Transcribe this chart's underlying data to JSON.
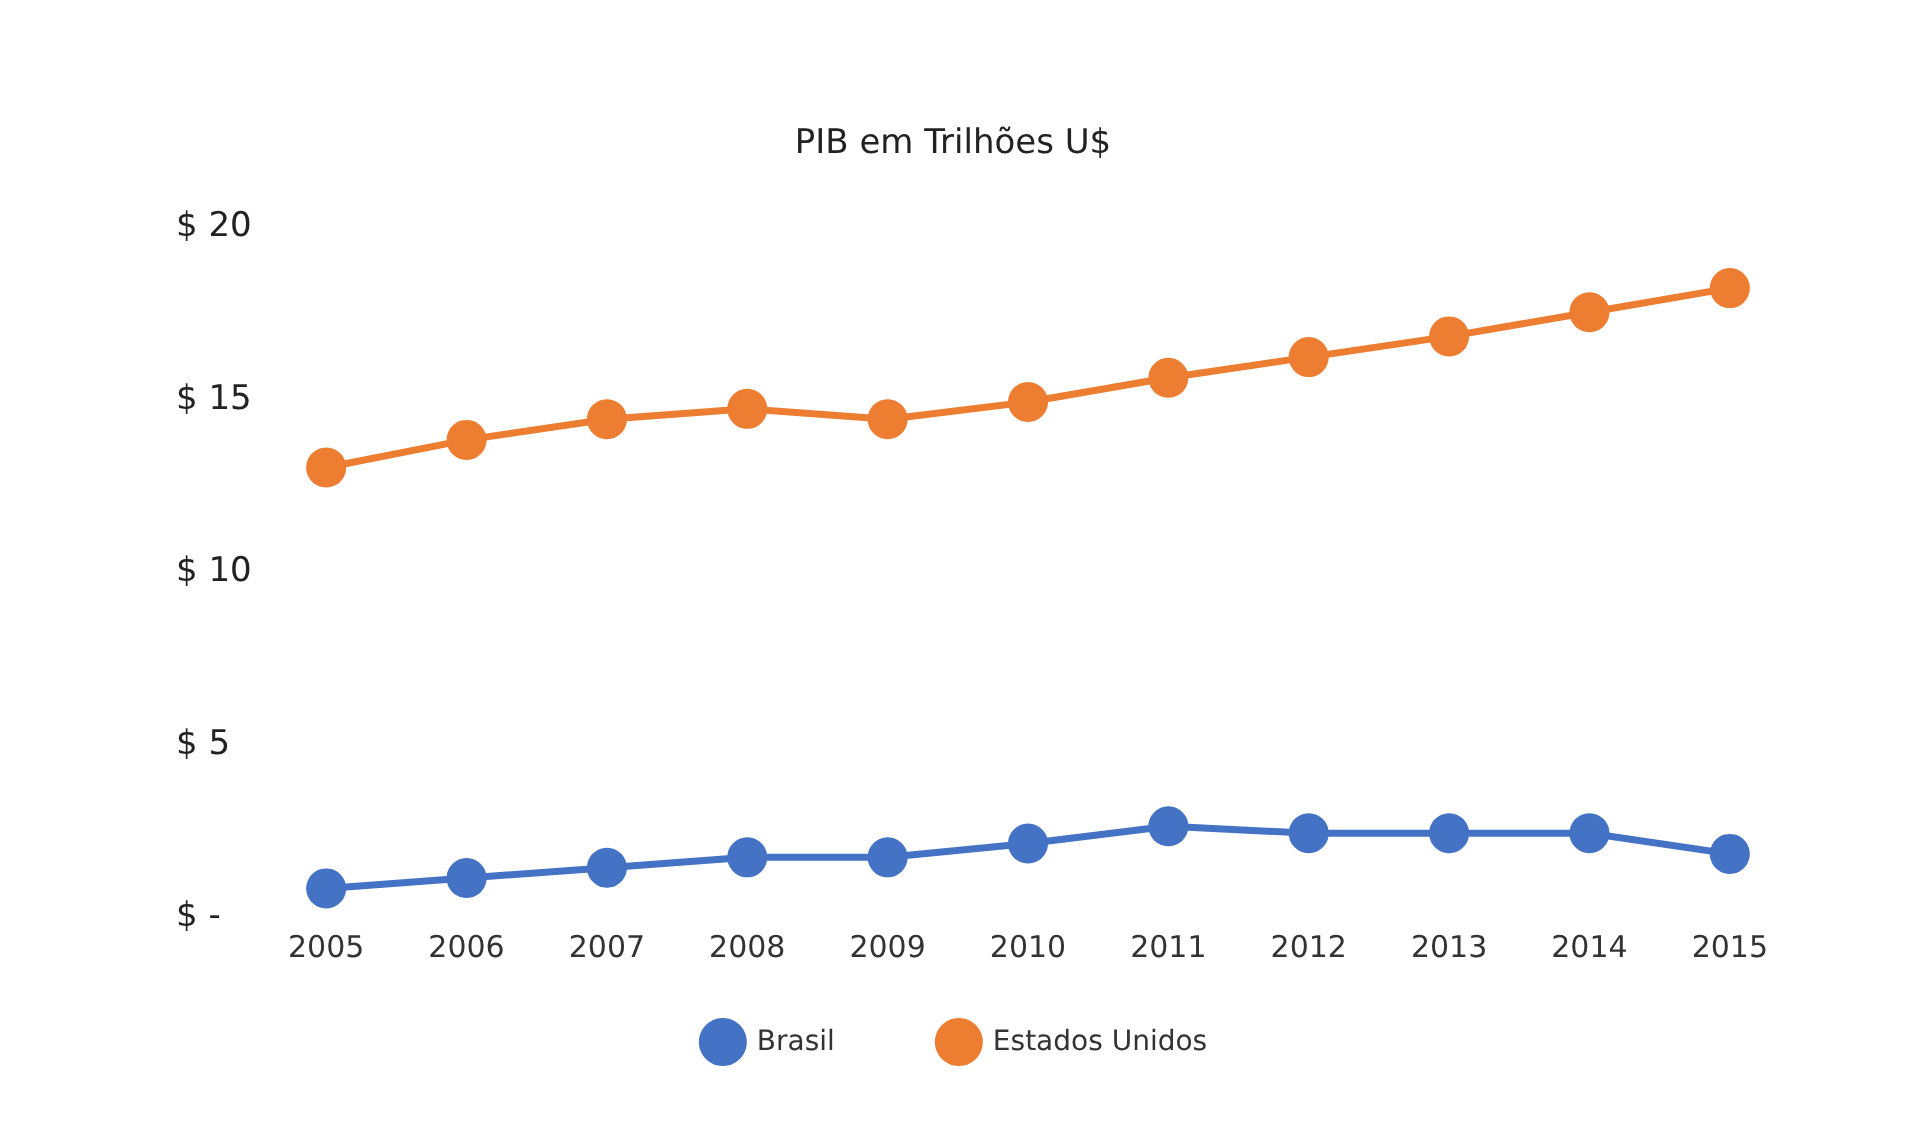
{
  "chart_data": {
    "type": "line",
    "title": "PIB em Trilhões U$",
    "categories": [
      "2005",
      "2006",
      "2007",
      "2008",
      "2009",
      "2010",
      "2011",
      "2012",
      "2013",
      "2014",
      "2015"
    ],
    "series": [
      {
        "name": "Brasil",
        "color": "#4472c4",
        "values": [
          0.8,
          1.1,
          1.4,
          1.7,
          1.7,
          2.1,
          2.6,
          2.4,
          2.4,
          2.4,
          1.8
        ]
      },
      {
        "name": "Estados Unidos",
        "color": "#ed7d31",
        "values": [
          13.0,
          13.8,
          14.4,
          14.7,
          14.4,
          14.9,
          15.6,
          16.2,
          16.8,
          17.5,
          18.2
        ]
      }
    ],
    "ylim": [
      0,
      20
    ],
    "yticks": [
      {
        "value": 0,
        "label": "$ -"
      },
      {
        "value": 5,
        "label": "$ 5"
      },
      {
        "value": 10,
        "label": "$ 10"
      },
      {
        "value": 15,
        "label": "$ 15"
      },
      {
        "value": 20,
        "label": "$ 20"
      }
    ],
    "grid": false,
    "legend": "bottom",
    "marker": "circle",
    "line_style": "solid"
  }
}
